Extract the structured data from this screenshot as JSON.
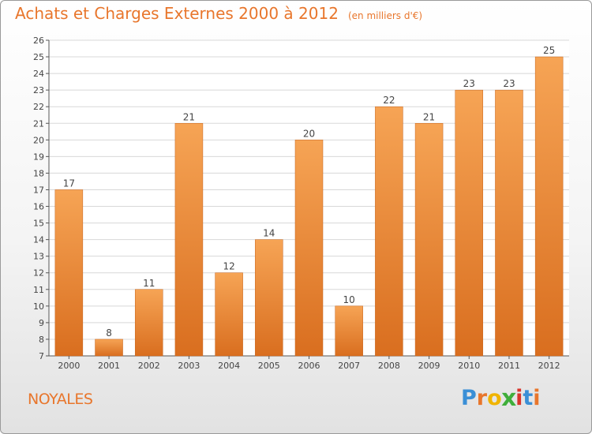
{
  "header": {
    "title": "Achats et Charges Externes 2000 à 2012",
    "subtitle": "(en milliers d'€)"
  },
  "commune": "NOYALES",
  "logo": {
    "text": "Proxiti",
    "letters": [
      {
        "ch": "P",
        "color": "#3a8fd6"
      },
      {
        "ch": "r",
        "color": "#e8762c"
      },
      {
        "ch": "o",
        "color": "#f0b400"
      },
      {
        "ch": "x",
        "color": "#3fae3a"
      },
      {
        "ch": "i",
        "color": "#d9342b"
      },
      {
        "ch": "t",
        "color": "#3a8fd6"
      },
      {
        "ch": "i",
        "color": "#e8762c"
      }
    ]
  },
  "colors": {
    "accent": "#e8762c",
    "bar_top": "#f6a455",
    "bar_bottom": "#d96e1f",
    "grid": "#d8d8d8",
    "axis": "#555555"
  },
  "chart_data": {
    "type": "bar",
    "categories": [
      "2000",
      "2001",
      "2002",
      "2003",
      "2004",
      "2005",
      "2006",
      "2007",
      "2008",
      "2009",
      "2010",
      "2011",
      "2012"
    ],
    "values": [
      17,
      8,
      11,
      21,
      12,
      14,
      20,
      10,
      22,
      21,
      23,
      23,
      25
    ],
    "ylim": [
      7,
      26
    ],
    "yticks": [
      7,
      8,
      9,
      10,
      11,
      12,
      13,
      14,
      15,
      16,
      17,
      18,
      19,
      20,
      21,
      22,
      23,
      24,
      25,
      26
    ],
    "grid": true,
    "legend": "none"
  }
}
